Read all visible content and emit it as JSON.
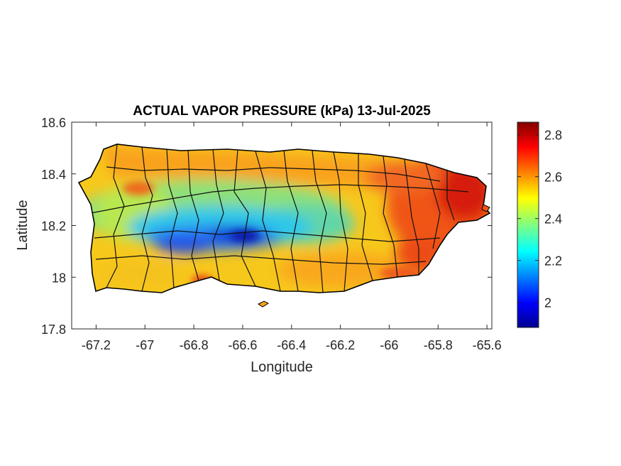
{
  "title": "ACTUAL VAPOR PRESSURE (kPa) 13-Jul-2025",
  "xlabel": "Longitude",
  "ylabel": "Latitude",
  "xlim": [
    -67.3,
    -65.58
  ],
  "ylim": [
    17.8,
    18.6
  ],
  "xticks": [
    {
      "value": -67.2,
      "label": "-67.2"
    },
    {
      "value": -67.0,
      "label": "-67"
    },
    {
      "value": -66.8,
      "label": "-66.8"
    },
    {
      "value": -66.6,
      "label": "-66.6"
    },
    {
      "value": -66.4,
      "label": "-66.4"
    },
    {
      "value": -66.2,
      "label": "-66.2"
    },
    {
      "value": -66.0,
      "label": "-66"
    },
    {
      "value": -65.8,
      "label": "-65.8"
    },
    {
      "value": -65.6,
      "label": "-65.6"
    }
  ],
  "yticks": [
    {
      "value": 17.8,
      "label": "17.8"
    },
    {
      "value": 18.0,
      "label": "18"
    },
    {
      "value": 18.2,
      "label": "18.2"
    },
    {
      "value": 18.4,
      "label": "18.4"
    },
    {
      "value": 18.6,
      "label": "18.6"
    }
  ],
  "colorbar": {
    "colormap": "jet",
    "range": [
      1.88,
      2.86
    ],
    "ticks": [
      {
        "value": 2.0,
        "label": "2"
      },
      {
        "value": 2.2,
        "label": "2.2"
      },
      {
        "value": 2.4,
        "label": "2.4"
      },
      {
        "value": 2.6,
        "label": "2.6"
      },
      {
        "value": 2.8,
        "label": "2.8"
      }
    ]
  },
  "colors": {
    "outline": "#000000",
    "axis": "#262626",
    "background": "#ffffff"
  }
}
